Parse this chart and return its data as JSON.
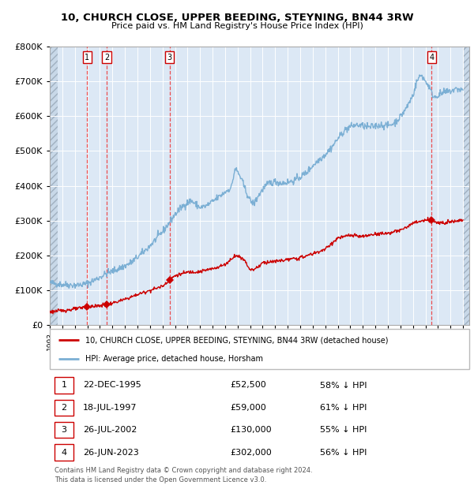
{
  "title1": "10, CHURCH CLOSE, UPPER BEEDING, STEYNING, BN44 3RW",
  "title2": "Price paid vs. HM Land Registry's House Price Index (HPI)",
  "sale_years": [
    1995.97,
    1997.54,
    2002.56,
    2023.49
  ],
  "sale_prices": [
    52500,
    59000,
    130000,
    302000
  ],
  "sale_labels": [
    "1",
    "2",
    "3",
    "4"
  ],
  "legend_line1": "10, CHURCH CLOSE, UPPER BEEDING, STEYNING, BN44 3RW (detached house)",
  "legend_line2": "HPI: Average price, detached house, Horsham",
  "table_rows": [
    [
      "1",
      "22-DEC-1995",
      "£52,500",
      "58% ↓ HPI"
    ],
    [
      "2",
      "18-JUL-1997",
      "£59,000",
      "61% ↓ HPI"
    ],
    [
      "3",
      "26-JUL-2002",
      "£130,000",
      "55% ↓ HPI"
    ],
    [
      "4",
      "26-JUN-2023",
      "£302,000",
      "56% ↓ HPI"
    ]
  ],
  "footnote1": "Contains HM Land Registry data © Crown copyright and database right 2024.",
  "footnote2": "This data is licensed under the Open Government Licence v3.0.",
  "red_color": "#cc0000",
  "blue_color": "#7bafd4",
  "plot_bg": "#dce8f5",
  "hatch_bg": "#c8d8e8",
  "grid_color": "#ffffff",
  "dashed_color": "#ee3333",
  "ylim": [
    0,
    800000
  ],
  "yticks": [
    0,
    100000,
    200000,
    300000,
    400000,
    500000,
    600000,
    700000,
    800000
  ],
  "xstart": 1993.0,
  "xend": 2026.5
}
